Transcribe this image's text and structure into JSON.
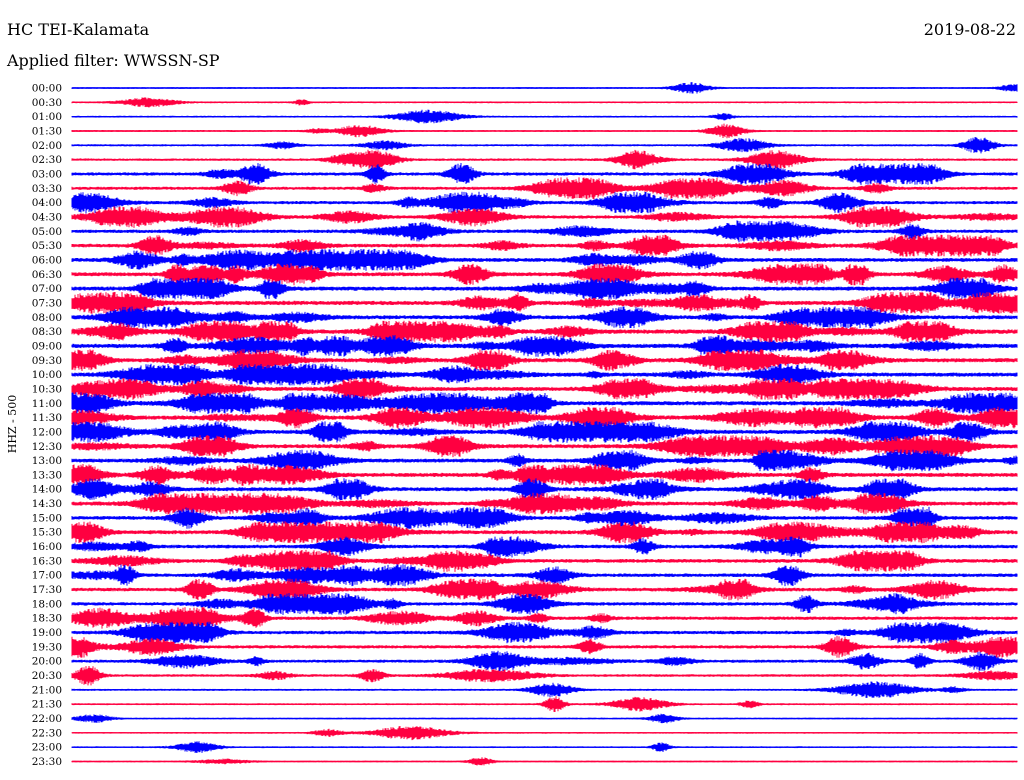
{
  "header": {
    "station": "HC TEI-Kalamata",
    "date": "2019-08-22",
    "filter": "Applied filter: WWSSN-SP"
  },
  "chart_data": {
    "type": "line",
    "title": "",
    "ylabel": "HHZ - 500",
    "y_tick_labels": [
      "00:00",
      "00:30",
      "01:00",
      "01:30",
      "02:00",
      "02:30",
      "03:00",
      "03:30",
      "04:00",
      "04:30",
      "05:00",
      "05:30",
      "06:00",
      "06:30",
      "07:00",
      "07:30",
      "08:00",
      "08:30",
      "09:00",
      "09:30",
      "10:00",
      "10:30",
      "11:00",
      "11:30",
      "12:00",
      "12:30",
      "13:00",
      "13:30",
      "14:00",
      "14:30",
      "15:00",
      "15:30",
      "16:00",
      "16:30",
      "17:00",
      "17:30",
      "18:00",
      "18:30",
      "19:00",
      "19:30",
      "20:00",
      "20:30",
      "21:00",
      "21:30",
      "22:00",
      "22:30",
      "23:00",
      "23:30"
    ],
    "trace_colors": [
      "#0000ff",
      "#ff0040"
    ],
    "activity": [
      0.08,
      0.08,
      0.1,
      0.12,
      0.2,
      0.3,
      0.55,
      0.5,
      0.55,
      0.55,
      0.6,
      0.7,
      0.75,
      0.8,
      0.8,
      0.85,
      0.75,
      0.9,
      0.85,
      0.85,
      0.8,
      0.8,
      0.85,
      0.8,
      0.85,
      0.8,
      0.75,
      0.8,
      0.75,
      0.75,
      0.7,
      0.75,
      0.65,
      0.7,
      0.65,
      0.65,
      0.6,
      0.6,
      0.6,
      0.55,
      0.5,
      0.35,
      0.15,
      0.12,
      0.06,
      0.05,
      0.06,
      0.05
    ],
    "grid": false,
    "legend": "none"
  }
}
